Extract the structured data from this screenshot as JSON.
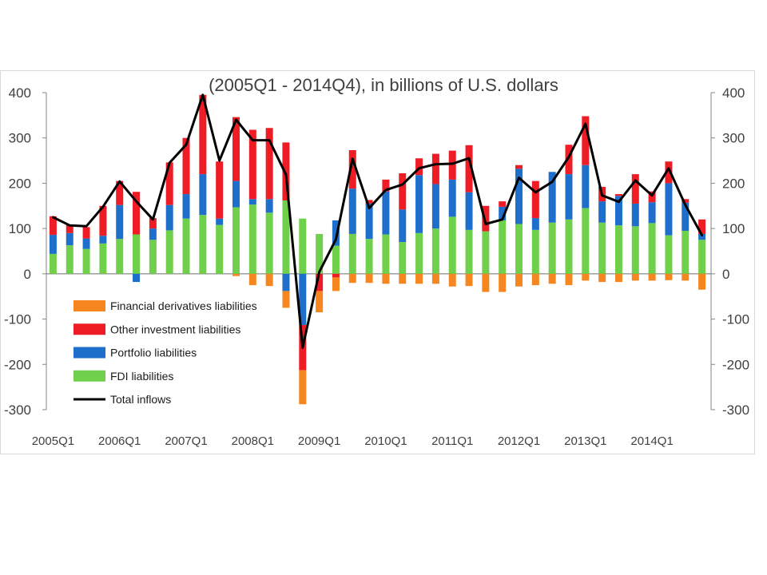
{
  "chart_data": {
    "type": "bar",
    "stacked": true,
    "title": "(2005Q1 - 2014Q4), in billions of U.S. dollars",
    "categories": [
      "2005Q1",
      "",
      "",
      "",
      "2006Q1",
      "",
      "",
      "",
      "2007Q1",
      "",
      "",
      "",
      "2008Q1",
      "",
      "",
      "",
      "2009Q1",
      "",
      "",
      "",
      "2010Q1",
      "",
      "",
      "",
      "2011Q1",
      "",
      "",
      "",
      "2012Q1",
      "",
      "",
      "",
      "2013Q1",
      "",
      "",
      "",
      "2014Q1",
      "",
      "",
      ""
    ],
    "ylim": [
      -300,
      400
    ],
    "y_ticks": [
      400,
      300,
      200,
      100,
      0,
      -100,
      -200,
      -300
    ],
    "y2_ticks": [
      400,
      300,
      200,
      100,
      0,
      -100,
      -200,
      -300
    ],
    "grid": false,
    "legend": {
      "placement": "bottom-left"
    },
    "series": [
      {
        "name": "Financial derivatives liabilities",
        "kind": "bar",
        "color": "#f6861f",
        "values": [
          0,
          0,
          0,
          0,
          0,
          0,
          0,
          0,
          0,
          0,
          0,
          -5,
          -25,
          -27,
          -37,
          -75,
          -47,
          -30,
          -20,
          -20,
          -22,
          -22,
          -22,
          -22,
          -28,
          -27,
          -40,
          -40,
          -28,
          -25,
          -22,
          -25,
          -15,
          -18,
          -18,
          -15,
          -15,
          -14,
          -15,
          -35
        ]
      },
      {
        "name": "Other investment liabilities",
        "kind": "bar",
        "color": "#ee1c25",
        "values": [
          41,
          18,
          25,
          66,
          53,
          94,
          23,
          94,
          124,
          175,
          126,
          141,
          153,
          157,
          128,
          -100,
          -38,
          -8,
          85,
          8,
          26,
          80,
          37,
          67,
          64,
          104,
          56,
          12,
          8,
          82,
          0,
          65,
          108,
          32,
          4,
          65,
          24,
          48,
          8,
          32
        ]
      },
      {
        "name": "Portfolio liabilities",
        "kind": "bar",
        "color": "#1e6fcc",
        "values": [
          42,
          27,
          23,
          17,
          75,
          -18,
          25,
          56,
          54,
          90,
          14,
          58,
          12,
          30,
          -38,
          -113,
          0,
          56,
          100,
          78,
          95,
          72,
          128,
          98,
          82,
          83,
          0,
          30,
          122,
          26,
          112,
          100,
          95,
          47,
          65,
          50,
          46,
          115,
          62,
          13
        ]
      },
      {
        "name": "FDI liabilities",
        "kind": "bar",
        "color": "#70d04b",
        "values": [
          44,
          63,
          55,
          67,
          77,
          87,
          75,
          96,
          122,
          130,
          108,
          147,
          153,
          135,
          162,
          122,
          88,
          62,
          88,
          77,
          87,
          70,
          90,
          100,
          126,
          97,
          94,
          118,
          110,
          97,
          113,
          120,
          145,
          113,
          107,
          105,
          112,
          85,
          95,
          75
        ]
      },
      {
        "name": "Total inflows",
        "kind": "line",
        "color": "#000000",
        "values": [
          125,
          107,
          105,
          148,
          204,
          160,
          120,
          245,
          285,
          395,
          250,
          340,
          295,
          295,
          219,
          -163,
          4,
          76,
          254,
          145,
          185,
          197,
          233,
          242,
          243,
          255,
          110,
          120,
          212,
          180,
          203,
          258,
          331,
          173,
          159,
          206,
          173,
          233,
          152,
          85
        ]
      }
    ]
  }
}
